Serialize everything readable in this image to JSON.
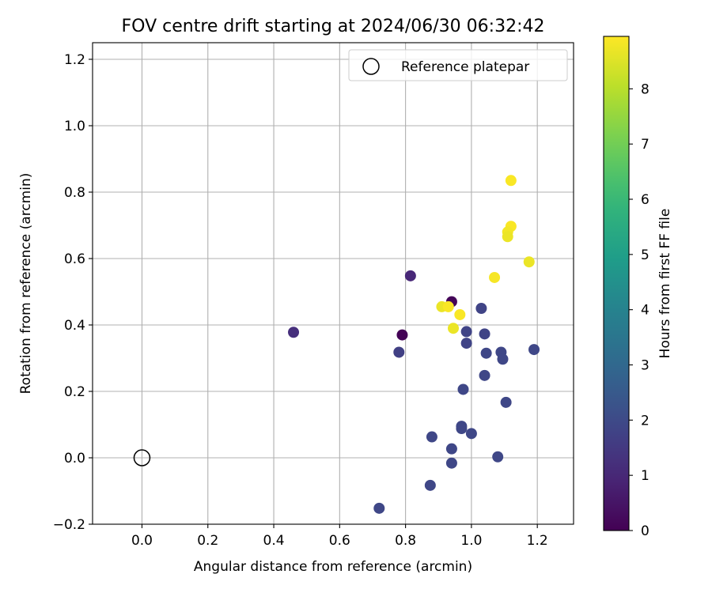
{
  "chart_data": {
    "type": "scatter",
    "title": "FOV centre drift starting at 2024/06/30 06:32:42",
    "xlabel": "Angular distance from reference (arcmin)",
    "ylabel": "Rotation from reference (arcmin)",
    "xlim": [
      -0.15,
      1.31
    ],
    "ylim": [
      -0.2,
      1.25
    ],
    "x_ticks": [
      0.0,
      0.2,
      0.4,
      0.6,
      0.8,
      1.0,
      1.2
    ],
    "x_tick_labels": [
      "0.0",
      "0.2",
      "0.4",
      "0.6",
      "0.8",
      "1.0",
      "1.2"
    ],
    "y_ticks": [
      -0.2,
      0.0,
      0.2,
      0.4,
      0.6,
      0.8,
      1.0,
      1.2
    ],
    "y_tick_labels": [
      "−0.2",
      "0.0",
      "0.2",
      "0.4",
      "0.6",
      "0.8",
      "1.0",
      "1.2"
    ],
    "grid": true,
    "legend": {
      "placement": "top-right",
      "entries": [
        "Reference platepar"
      ]
    },
    "reference_point": {
      "x": 0.0,
      "y": 0.0
    },
    "colorbar": {
      "label": "Hours from first FF file",
      "colormap": "viridis",
      "range": [
        0,
        8.95
      ],
      "ticks": [
        0,
        1,
        2,
        3,
        4,
        5,
        6,
        7,
        8
      ],
      "tick_labels": [
        "0",
        "1",
        "2",
        "3",
        "4",
        "5",
        "6",
        "7",
        "8"
      ]
    },
    "points": [
      {
        "x": 0.79,
        "y": 0.37,
        "hours": 0.05
      },
      {
        "x": 0.94,
        "y": 0.47,
        "hours": 0.1
      },
      {
        "x": 0.815,
        "y": 0.548,
        "hours": 1.0
      },
      {
        "x": 0.46,
        "y": 0.378,
        "hours": 1.2
      },
      {
        "x": 0.78,
        "y": 0.318,
        "hours": 1.7
      },
      {
        "x": 1.03,
        "y": 0.45,
        "hours": 1.8
      },
      {
        "x": 0.985,
        "y": 0.38,
        "hours": 1.8
      },
      {
        "x": 1.04,
        "y": 0.373,
        "hours": 1.8
      },
      {
        "x": 0.985,
        "y": 0.345,
        "hours": 1.8
      },
      {
        "x": 1.045,
        "y": 0.315,
        "hours": 1.9
      },
      {
        "x": 1.09,
        "y": 0.318,
        "hours": 1.9
      },
      {
        "x": 1.095,
        "y": 0.297,
        "hours": 1.9
      },
      {
        "x": 1.19,
        "y": 0.326,
        "hours": 1.9
      },
      {
        "x": 1.04,
        "y": 0.248,
        "hours": 1.9
      },
      {
        "x": 0.975,
        "y": 0.206,
        "hours": 1.9
      },
      {
        "x": 1.105,
        "y": 0.167,
        "hours": 1.9
      },
      {
        "x": 0.97,
        "y": 0.095,
        "hours": 1.9
      },
      {
        "x": 0.97,
        "y": 0.088,
        "hours": 1.9
      },
      {
        "x": 1.0,
        "y": 0.073,
        "hours": 1.9
      },
      {
        "x": 0.88,
        "y": 0.063,
        "hours": 1.9
      },
      {
        "x": 0.94,
        "y": 0.027,
        "hours": 1.9
      },
      {
        "x": 1.08,
        "y": 0.003,
        "hours": 1.9
      },
      {
        "x": 0.94,
        "y": -0.016,
        "hours": 1.9
      },
      {
        "x": 0.875,
        "y": -0.083,
        "hours": 1.9
      },
      {
        "x": 0.72,
        "y": -0.152,
        "hours": 1.9
      },
      {
        "x": 1.12,
        "y": 0.835,
        "hours": 8.9
      },
      {
        "x": 1.12,
        "y": 0.697,
        "hours": 8.9
      },
      {
        "x": 1.11,
        "y": 0.68,
        "hours": 8.8
      },
      {
        "x": 1.11,
        "y": 0.666,
        "hours": 8.7
      },
      {
        "x": 1.175,
        "y": 0.59,
        "hours": 8.7
      },
      {
        "x": 1.07,
        "y": 0.543,
        "hours": 8.85
      },
      {
        "x": 0.91,
        "y": 0.455,
        "hours": 8.7
      },
      {
        "x": 0.93,
        "y": 0.455,
        "hours": 8.9
      },
      {
        "x": 0.965,
        "y": 0.431,
        "hours": 8.9
      },
      {
        "x": 0.945,
        "y": 0.39,
        "hours": 8.7
      }
    ]
  }
}
